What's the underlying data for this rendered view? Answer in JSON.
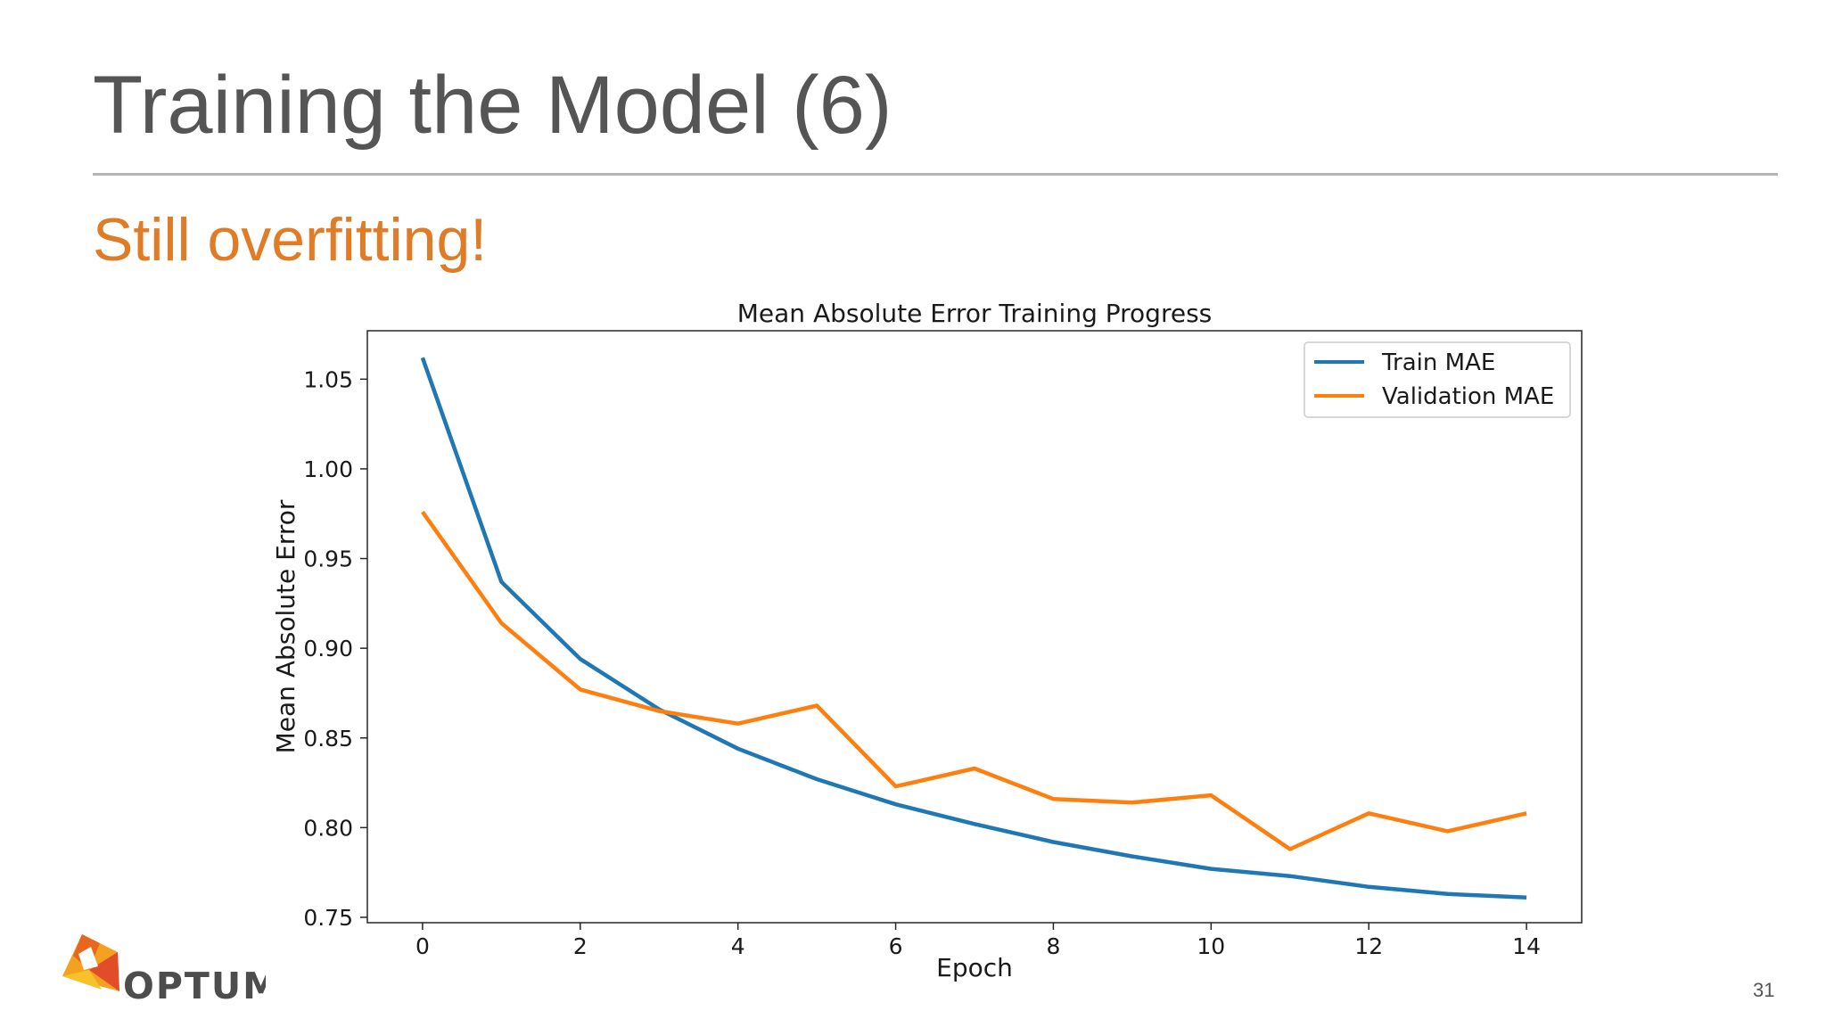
{
  "slide": {
    "title": "Training the Model (6)",
    "subtitle": "Still overfitting!",
    "page_number": "31",
    "logo_text": "OPTUM",
    "accent_color": "#e07b26"
  },
  "chart_data": {
    "type": "line",
    "title": "Mean Absolute Error Training Progress",
    "xlabel": "Epoch",
    "ylabel": "Mean Absolute Error",
    "x": [
      0,
      1,
      2,
      3,
      4,
      5,
      6,
      7,
      8,
      9,
      10,
      11,
      12,
      13,
      14
    ],
    "xlim": [
      -0.7,
      14.7
    ],
    "ylim": [
      0.747,
      1.077
    ],
    "xticks": [
      0,
      2,
      4,
      6,
      8,
      10,
      12,
      14
    ],
    "yticks": [
      0.75,
      0.8,
      0.85,
      0.9,
      0.95,
      1.0,
      1.05
    ],
    "grid": false,
    "legend_position": "top-right",
    "series": [
      {
        "name": "Train MAE",
        "color": "#1f77b4",
        "values": [
          1.062,
          0.937,
          0.894,
          0.866,
          0.844,
          0.827,
          0.813,
          0.802,
          0.792,
          0.784,
          0.777,
          0.773,
          0.767,
          0.763,
          0.761
        ]
      },
      {
        "name": "Validation MAE",
        "color": "#ff7f0e",
        "values": [
          0.976,
          0.914,
          0.877,
          0.865,
          0.858,
          0.868,
          0.823,
          0.833,
          0.816,
          0.814,
          0.818,
          0.788,
          0.808,
          0.798,
          0.808
        ]
      }
    ]
  }
}
